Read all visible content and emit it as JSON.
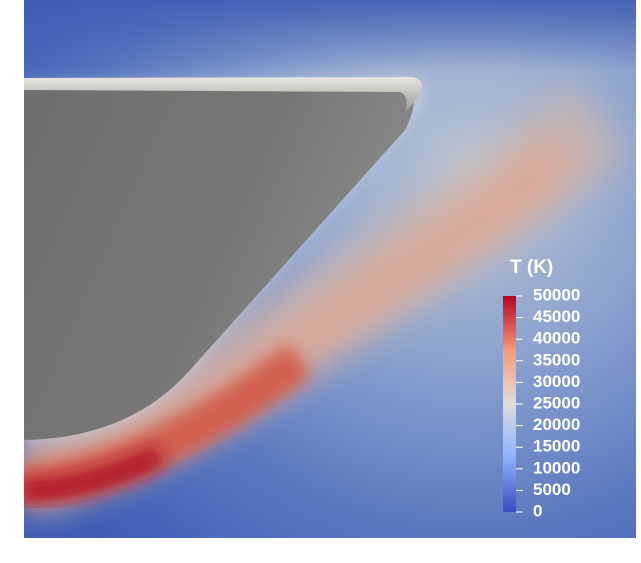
{
  "chart_data": {
    "type": "colorbar",
    "title": "T (K)",
    "clim": [
      0,
      50000
    ],
    "ticks": [
      0,
      5000,
      10000,
      15000,
      20000,
      25000,
      30000,
      35000,
      40000,
      45000,
      50000
    ],
    "colors": [
      "#3b4cc0",
      "#8db0fe",
      "#dddddd",
      "#f49a7b",
      "#b40426"
    ]
  }
}
